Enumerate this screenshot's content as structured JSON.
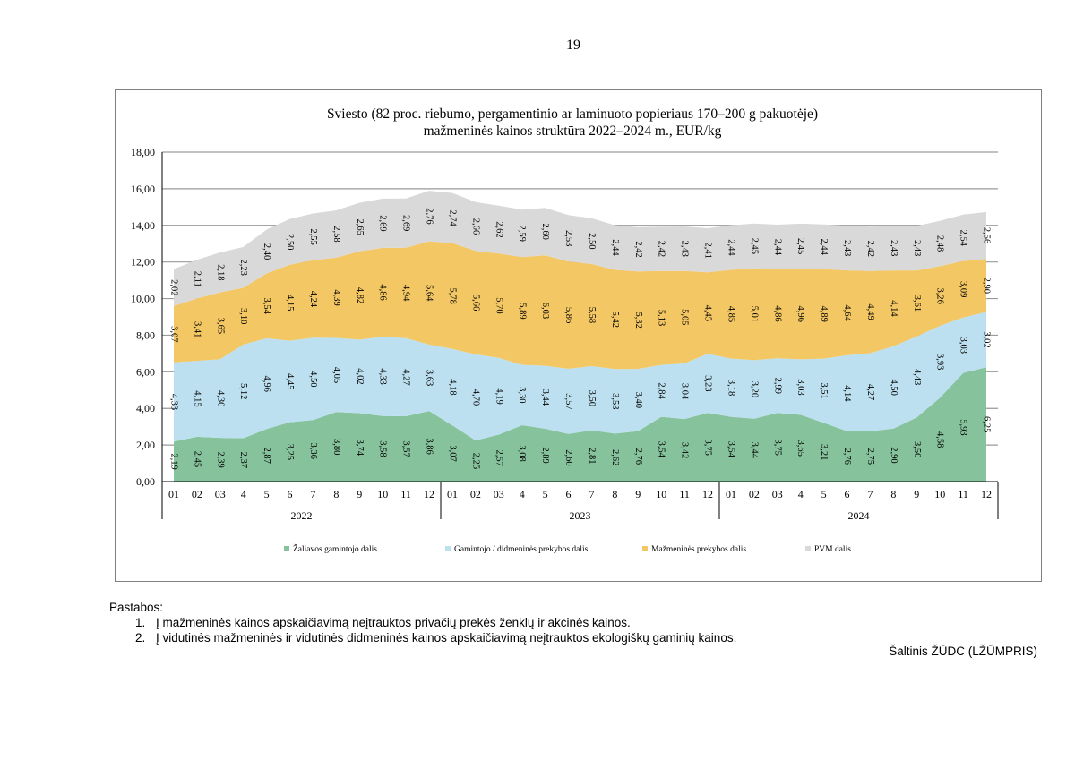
{
  "page_number": "19",
  "chart_data": {
    "type": "area",
    "stacked": true,
    "title": "Sviesto (82 proc. riebumo, pergamentinio ar laminuoto popieriaus 170–200 g pakuotėje)",
    "subtitle": "mažmeninės kainos struktūra 2022–2024 m., EUR/kg",
    "xlabel": "",
    "ylabel": "",
    "ylim": [
      0,
      18
    ],
    "y_ticks": [
      "0,00",
      "2,00",
      "4,00",
      "6,00",
      "8,00",
      "10,00",
      "12,00",
      "14,00",
      "16,00",
      "18,00"
    ],
    "grid": true,
    "legend_position": "bottom",
    "categories": [
      "01",
      "02",
      "03",
      "4",
      "5",
      "6",
      "7",
      "8",
      "9",
      "10",
      "11",
      "12",
      "01",
      "02",
      "03",
      "4",
      "5",
      "6",
      "7",
      "8",
      "9",
      "10",
      "11",
      "12",
      "01",
      "02",
      "03",
      "4",
      "5",
      "6",
      "7",
      "8",
      "9",
      "10",
      "11",
      "12"
    ],
    "years": [
      "2022",
      "2023",
      "2024"
    ],
    "series": [
      {
        "name": "Žaliavos gamintojo dalis",
        "color": "#86c39d",
        "values": [
          2.19,
          2.45,
          2.39,
          2.37,
          2.87,
          3.25,
          3.36,
          3.8,
          3.74,
          3.58,
          3.57,
          3.86,
          3.07,
          2.25,
          2.57,
          3.08,
          2.89,
          2.6,
          2.81,
          2.62,
          2.76,
          3.54,
          3.42,
          3.75,
          3.54,
          3.44,
          3.75,
          3.65,
          3.21,
          2.76,
          2.75,
          2.9,
          3.5,
          4.58,
          5.93,
          6.25
        ],
        "labels": [
          "2,19",
          "2,45",
          "2,39",
          "2,37",
          "2,87",
          "3,25",
          "3,36",
          "3,80",
          "3,74",
          "3,58",
          "3,57",
          "3,86",
          "3,07",
          "2,25",
          "2,57",
          "3,08",
          "2,89",
          "2,60",
          "2,81",
          "2,62",
          "2,76",
          "3,54",
          "3,42",
          "3,75",
          "3,54",
          "3,44",
          "3,75",
          "3,65",
          "3,21",
          "2,76",
          "2,75",
          "2,90",
          "3,50",
          "4,58",
          "5,93",
          "6,25"
        ]
      },
      {
        "name": "Gamintojo / didmeninės prekybos dalis",
        "color": "#bde0f0",
        "values": [
          4.33,
          4.15,
          4.3,
          5.12,
          4.96,
          4.45,
          4.5,
          4.05,
          4.02,
          4.33,
          4.27,
          3.63,
          4.18,
          4.7,
          4.19,
          3.3,
          3.44,
          3.57,
          3.5,
          3.53,
          3.4,
          2.84,
          3.04,
          3.23,
          3.18,
          3.2,
          2.99,
          3.03,
          3.51,
          4.14,
          4.27,
          4.5,
          4.43,
          3.93,
          3.03,
          3.02
        ],
        "labels": [
          "4,33",
          "4,15",
          "4,30",
          "5,12",
          "4,96",
          "4,45",
          "4,50",
          "4,05",
          "4,02",
          "4,33",
          "4,27",
          "3,63",
          "4,18",
          "4,70",
          "4,19",
          "3,30",
          "3,44",
          "3,57",
          "3,50",
          "3,53",
          "3,40",
          "2,84",
          "3,04",
          "3,23",
          "3,18",
          "3,20",
          "2,99",
          "3,03",
          "3,51",
          "4,14",
          "4,27",
          "4,50",
          "4,43",
          "3,93",
          "3,03",
          "3,02"
        ]
      },
      {
        "name": "Mažmeninės prekybos dalis",
        "color": "#f3c764",
        "values": [
          3.07,
          3.41,
          3.65,
          3.1,
          3.54,
          4.15,
          4.24,
          4.39,
          4.82,
          4.86,
          4.94,
          5.64,
          5.78,
          5.66,
          5.7,
          5.89,
          6.03,
          5.86,
          5.58,
          5.42,
          5.32,
          5.13,
          5.05,
          4.45,
          4.85,
          5.01,
          4.86,
          4.96,
          4.89,
          4.64,
          4.49,
          4.14,
          3.61,
          3.26,
          3.09,
          2.9
        ],
        "labels": [
          "3,07",
          "3,41",
          "3,65",
          "3,10",
          "3,54",
          "4,15",
          "4,24",
          "4,39",
          "4,82",
          "4,86",
          "4,94",
          "5,64",
          "5,78",
          "5,66",
          "5,70",
          "5,89",
          "6,03",
          "5,86",
          "5,58",
          "5,42",
          "5,32",
          "5,13",
          "5,05",
          "4,45",
          "4,85",
          "5,01",
          "4,86",
          "4,96",
          "4,89",
          "4,64",
          "4,49",
          "4,14",
          "3,61",
          "3,26",
          "3,09",
          "2,90"
        ]
      },
      {
        "name": "PVM dalis",
        "color": "#d9d9d9",
        "values": [
          2.02,
          2.11,
          2.18,
          2.23,
          2.4,
          2.5,
          2.55,
          2.58,
          2.65,
          2.69,
          2.69,
          2.76,
          2.74,
          2.66,
          2.62,
          2.59,
          2.6,
          2.53,
          2.5,
          2.44,
          2.42,
          2.42,
          2.43,
          2.41,
          2.44,
          2.45,
          2.44,
          2.45,
          2.44,
          2.43,
          2.42,
          2.43,
          2.43,
          2.48,
          2.54,
          2.56
        ],
        "labels": [
          "2,02",
          "2,11",
          "2,18",
          "2,23",
          "2,40",
          "2,50",
          "2,55",
          "2,58",
          "2,65",
          "2,69",
          "2,69",
          "2,76",
          "2,74",
          "2,66",
          "2,62",
          "2,59",
          "2,60",
          "2,53",
          "2,50",
          "2,44",
          "2,42",
          "2,42",
          "2,43",
          "2,41",
          "2,44",
          "2,45",
          "2,44",
          "2,45",
          "2,44",
          "2,43",
          "2,42",
          "2,43",
          "2,43",
          "2,48",
          "2,54",
          "2,56"
        ]
      }
    ]
  },
  "notes": {
    "heading": "Pastabos:",
    "items": [
      "Į mažmeninės kainos apskaičiavimą neįtrauktos privačių prekės ženklų ir akcinės kainos.",
      "Į vidutinės mažmeninės ir vidutinės didmeninės kainos apskaičiavimą neįtrauktos ekologiškų gaminių kainos."
    ]
  },
  "source": "Šaltinis ŽŪDC (LŽŪMPRIS)"
}
